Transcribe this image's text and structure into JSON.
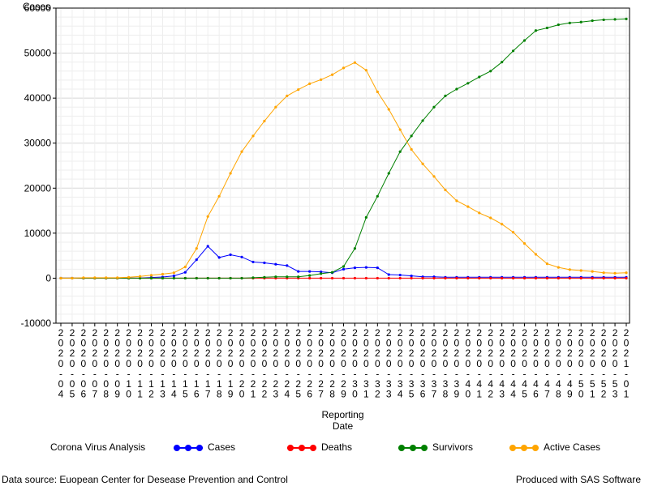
{
  "chart_data": {
    "type": "line",
    "ylabel": "Cases",
    "xlabel": "Reporting Date",
    "ylim": [
      -10000,
      60000
    ],
    "yticks": [
      -10000,
      0,
      10000,
      20000,
      30000,
      40000,
      50000,
      60000
    ],
    "grid": true,
    "categories": [
      "2020-04",
      "2020-05",
      "2020-06",
      "2020-07",
      "2020-08",
      "2020-09",
      "2020-10",
      "2020-11",
      "2020-12",
      "2020-13",
      "2020-14",
      "2020-15",
      "2020-16",
      "2020-17",
      "2020-18",
      "2020-19",
      "2020-20",
      "2020-21",
      "2020-22",
      "2020-23",
      "2020-24",
      "2020-25",
      "2020-26",
      "2020-27",
      "2020-28",
      "2020-29",
      "2020-30",
      "2020-31",
      "2020-32",
      "2020-33",
      "2020-34",
      "2020-35",
      "2020-36",
      "2020-37",
      "2020-38",
      "2020-39",
      "2020-40",
      "2020-41",
      "2020-42",
      "2020-43",
      "2020-44",
      "2020-45",
      "2020-46",
      "2020-47",
      "2020-48",
      "2020-49",
      "2020-50",
      "2020-51",
      "2020-52",
      "2020-53",
      "2021-01"
    ],
    "series": [
      {
        "name": "Cases",
        "color": "#0000ff",
        "values": [
          0,
          0,
          0,
          0,
          0,
          0,
          0,
          50,
          150,
          250,
          500,
          1300,
          4100,
          7100,
          4600,
          5200,
          4700,
          3600,
          3400,
          3100,
          2800,
          1500,
          1500,
          1400,
          1200,
          2000,
          2300,
          2400,
          2300,
          800,
          700,
          500,
          300,
          300,
          200,
          200,
          200,
          200,
          200,
          200,
          200,
          200,
          200,
          200,
          200,
          200,
          200,
          200,
          200,
          200,
          200
        ]
      },
      {
        "name": "Deaths",
        "color": "#ff0000",
        "values": [
          0,
          0,
          0,
          0,
          0,
          0,
          0,
          0,
          0,
          0,
          0,
          0,
          0,
          0,
          0,
          0,
          0,
          0,
          0,
          0,
          0,
          0,
          0,
          0,
          0,
          0,
          0,
          0,
          0,
          0,
          0,
          0,
          0,
          0,
          0,
          0,
          0,
          0,
          0,
          0,
          0,
          0,
          0,
          0,
          0,
          0,
          0,
          0,
          0,
          0,
          0
        ]
      },
      {
        "name": "Survivors",
        "color": "#008000",
        "values": [
          0,
          0,
          0,
          0,
          0,
          0,
          0,
          0,
          0,
          0,
          0,
          0,
          0,
          0,
          0,
          0,
          0,
          100,
          200,
          300,
          300,
          300,
          600,
          1000,
          1300,
          2600,
          6600,
          13500,
          18200,
          23300,
          28100,
          31600,
          35000,
          38000,
          40500,
          42000,
          43300,
          44700,
          46000,
          48000,
          50500,
          52800,
          55000,
          55600,
          56300,
          56700,
          56900,
          57200,
          57400,
          57500,
          57600
        ]
      },
      {
        "name": "Active Cases",
        "color": "#ffa500",
        "values": [
          0,
          0,
          100,
          100,
          100,
          100,
          200,
          400,
          650,
          900,
          1200,
          2500,
          6600,
          13700,
          18200,
          23300,
          28100,
          31600,
          34900,
          38000,
          40500,
          41900,
          43200,
          44100,
          45200,
          46700,
          47900,
          46200,
          41400,
          37500,
          33000,
          28600,
          25400,
          22600,
          19600,
          17200,
          15900,
          14500,
          13400,
          12000,
          10200,
          7700,
          5300,
          3200,
          2400,
          1900,
          1700,
          1500,
          1200,
          1100,
          1200
        ]
      }
    ]
  },
  "legend": {
    "title": "Corona Virus Analysis"
  },
  "footer": {
    "source": "Data source: Euopean Center for Desease Prevention and Control",
    "credit": "Produced with SAS Software"
  }
}
